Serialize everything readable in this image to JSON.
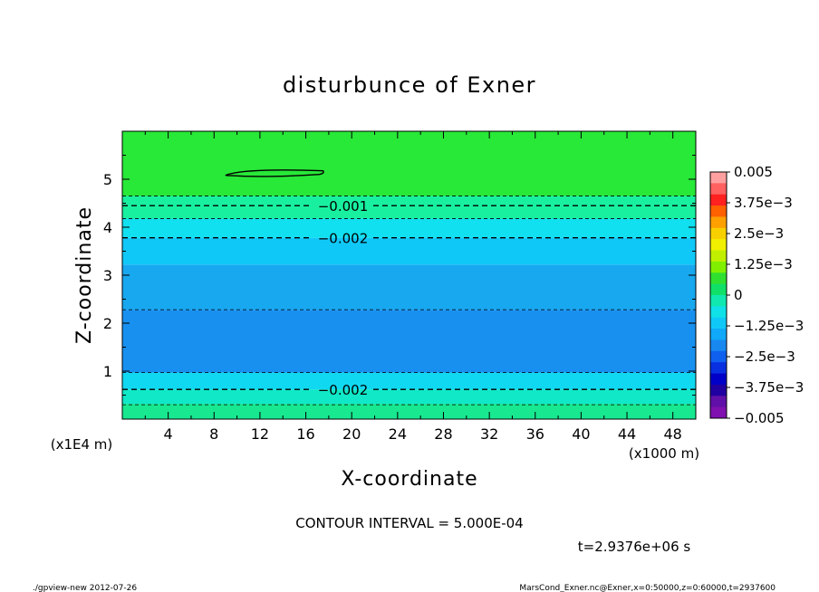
{
  "chart_data": {
    "type": "heatmap",
    "title": "disturbunce of Exner",
    "xlabel": "X-coordinate",
    "ylabel": "Z-coordinate",
    "x_unit": "(x1000 m)",
    "y_unit": "(x1E4 m)",
    "xlim": [
      0,
      50
    ],
    "ylim": [
      0,
      6
    ],
    "x_ticks": [
      4,
      8,
      12,
      16,
      20,
      24,
      28,
      32,
      36,
      40,
      44,
      48
    ],
    "y_ticks": [
      1,
      2,
      3,
      4,
      5
    ],
    "bands": [
      {
        "from": 0.0,
        "to": 0.32,
        "color": "#18e890"
      },
      {
        "from": 0.32,
        "to": 0.62,
        "color": "#10e8c8"
      },
      {
        "from": 0.62,
        "to": 0.97,
        "color": "#10d8f0"
      },
      {
        "from": 0.97,
        "to": 2.28,
        "color": "#1890f0"
      },
      {
        "from": 2.28,
        "to": 3.22,
        "color": "#18a8f0"
      },
      {
        "from": 3.22,
        "to": 3.78,
        "color": "#10c8f8"
      },
      {
        "from": 3.78,
        "to": 4.18,
        "color": "#10e0f0"
      },
      {
        "from": 4.18,
        "to": 4.65,
        "color": "#18f0a0"
      },
      {
        "from": 4.65,
        "to": 6.0,
        "color": "#28e838"
      }
    ],
    "contour_lines": [
      {
        "y": 0.3,
        "style": "thin"
      },
      {
        "y": 0.62,
        "style": "thick",
        "label": "-0.002"
      },
      {
        "y": 0.97,
        "style": "thin"
      },
      {
        "y": 2.28,
        "style": "thin"
      },
      {
        "y": 3.78,
        "style": "thick",
        "label": "-0.002"
      },
      {
        "y": 4.18,
        "style": "thin"
      },
      {
        "y": 4.45,
        "style": "thick",
        "label": "-0.001"
      },
      {
        "y": 4.65,
        "style": "thin"
      }
    ],
    "closed_contour": {
      "x_start": 9.0,
      "x_end": 17.5,
      "y": 5.12
    },
    "colorbar": {
      "labels": [
        "0.005",
        "3.75e-3",
        "2.5e-3",
        "1.25e-3",
        "0",
        "-1.25e-3",
        "-2.5e-3",
        "-3.75e-3",
        "-0.005"
      ],
      "colors": [
        "#ffa0a0",
        "#ff6060",
        "#ff2020",
        "#ff6000",
        "#ffa000",
        "#f8d000",
        "#f0f000",
        "#c0f000",
        "#80f000",
        "#30e030",
        "#10e068",
        "#10e8b0",
        "#10e0e8",
        "#10c8f8",
        "#10a8f8",
        "#1888f0",
        "#1060f0",
        "#0830e0",
        "#0000c8",
        "#2000a0",
        "#6010a8",
        "#8010b0"
      ]
    },
    "contour_interval": "CONTOUR INTERVAL = 5.000E-04",
    "time_label": "t=2.9376e+06 s"
  },
  "footer": {
    "left": "./gpview-new   2012-07-26",
    "right": "MarsCond_Exner.nc@Exner,x=0:50000,z=0:60000,t=2937600"
  }
}
